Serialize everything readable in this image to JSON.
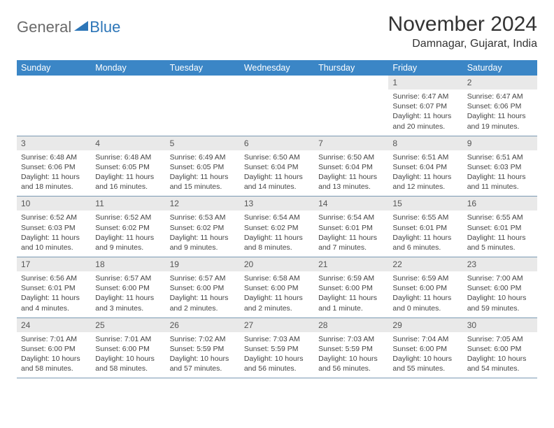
{
  "logo": {
    "general": "General",
    "blue": "Blue"
  },
  "title": "November 2024",
  "location": "Damnagar, Gujarat, India",
  "columns": [
    "Sunday",
    "Monday",
    "Tuesday",
    "Wednesday",
    "Thursday",
    "Friday",
    "Saturday"
  ],
  "colors": {
    "header_bg": "#3b86c6",
    "header_fg": "#ffffff",
    "daynum_bg": "#e9e9e9",
    "row_border": "#7a99b3",
    "logo_blue": "#2d76b8",
    "logo_gray": "#6a6a6a",
    "text": "#444444"
  },
  "weeks": [
    [
      {
        "n": "",
        "sunrise": "",
        "sunset": "",
        "daylight": ""
      },
      {
        "n": "",
        "sunrise": "",
        "sunset": "",
        "daylight": ""
      },
      {
        "n": "",
        "sunrise": "",
        "sunset": "",
        "daylight": ""
      },
      {
        "n": "",
        "sunrise": "",
        "sunset": "",
        "daylight": ""
      },
      {
        "n": "",
        "sunrise": "",
        "sunset": "",
        "daylight": ""
      },
      {
        "n": "1",
        "sunrise": "Sunrise: 6:47 AM",
        "sunset": "Sunset: 6:07 PM",
        "daylight": "Daylight: 11 hours and 20 minutes."
      },
      {
        "n": "2",
        "sunrise": "Sunrise: 6:47 AM",
        "sunset": "Sunset: 6:06 PM",
        "daylight": "Daylight: 11 hours and 19 minutes."
      }
    ],
    [
      {
        "n": "3",
        "sunrise": "Sunrise: 6:48 AM",
        "sunset": "Sunset: 6:06 PM",
        "daylight": "Daylight: 11 hours and 18 minutes."
      },
      {
        "n": "4",
        "sunrise": "Sunrise: 6:48 AM",
        "sunset": "Sunset: 6:05 PM",
        "daylight": "Daylight: 11 hours and 16 minutes."
      },
      {
        "n": "5",
        "sunrise": "Sunrise: 6:49 AM",
        "sunset": "Sunset: 6:05 PM",
        "daylight": "Daylight: 11 hours and 15 minutes."
      },
      {
        "n": "6",
        "sunrise": "Sunrise: 6:50 AM",
        "sunset": "Sunset: 6:04 PM",
        "daylight": "Daylight: 11 hours and 14 minutes."
      },
      {
        "n": "7",
        "sunrise": "Sunrise: 6:50 AM",
        "sunset": "Sunset: 6:04 PM",
        "daylight": "Daylight: 11 hours and 13 minutes."
      },
      {
        "n": "8",
        "sunrise": "Sunrise: 6:51 AM",
        "sunset": "Sunset: 6:04 PM",
        "daylight": "Daylight: 11 hours and 12 minutes."
      },
      {
        "n": "9",
        "sunrise": "Sunrise: 6:51 AM",
        "sunset": "Sunset: 6:03 PM",
        "daylight": "Daylight: 11 hours and 11 minutes."
      }
    ],
    [
      {
        "n": "10",
        "sunrise": "Sunrise: 6:52 AM",
        "sunset": "Sunset: 6:03 PM",
        "daylight": "Daylight: 11 hours and 10 minutes."
      },
      {
        "n": "11",
        "sunrise": "Sunrise: 6:52 AM",
        "sunset": "Sunset: 6:02 PM",
        "daylight": "Daylight: 11 hours and 9 minutes."
      },
      {
        "n": "12",
        "sunrise": "Sunrise: 6:53 AM",
        "sunset": "Sunset: 6:02 PM",
        "daylight": "Daylight: 11 hours and 9 minutes."
      },
      {
        "n": "13",
        "sunrise": "Sunrise: 6:54 AM",
        "sunset": "Sunset: 6:02 PM",
        "daylight": "Daylight: 11 hours and 8 minutes."
      },
      {
        "n": "14",
        "sunrise": "Sunrise: 6:54 AM",
        "sunset": "Sunset: 6:01 PM",
        "daylight": "Daylight: 11 hours and 7 minutes."
      },
      {
        "n": "15",
        "sunrise": "Sunrise: 6:55 AM",
        "sunset": "Sunset: 6:01 PM",
        "daylight": "Daylight: 11 hours and 6 minutes."
      },
      {
        "n": "16",
        "sunrise": "Sunrise: 6:55 AM",
        "sunset": "Sunset: 6:01 PM",
        "daylight": "Daylight: 11 hours and 5 minutes."
      }
    ],
    [
      {
        "n": "17",
        "sunrise": "Sunrise: 6:56 AM",
        "sunset": "Sunset: 6:01 PM",
        "daylight": "Daylight: 11 hours and 4 minutes."
      },
      {
        "n": "18",
        "sunrise": "Sunrise: 6:57 AM",
        "sunset": "Sunset: 6:00 PM",
        "daylight": "Daylight: 11 hours and 3 minutes."
      },
      {
        "n": "19",
        "sunrise": "Sunrise: 6:57 AM",
        "sunset": "Sunset: 6:00 PM",
        "daylight": "Daylight: 11 hours and 2 minutes."
      },
      {
        "n": "20",
        "sunrise": "Sunrise: 6:58 AM",
        "sunset": "Sunset: 6:00 PM",
        "daylight": "Daylight: 11 hours and 2 minutes."
      },
      {
        "n": "21",
        "sunrise": "Sunrise: 6:59 AM",
        "sunset": "Sunset: 6:00 PM",
        "daylight": "Daylight: 11 hours and 1 minute."
      },
      {
        "n": "22",
        "sunrise": "Sunrise: 6:59 AM",
        "sunset": "Sunset: 6:00 PM",
        "daylight": "Daylight: 11 hours and 0 minutes."
      },
      {
        "n": "23",
        "sunrise": "Sunrise: 7:00 AM",
        "sunset": "Sunset: 6:00 PM",
        "daylight": "Daylight: 10 hours and 59 minutes."
      }
    ],
    [
      {
        "n": "24",
        "sunrise": "Sunrise: 7:01 AM",
        "sunset": "Sunset: 6:00 PM",
        "daylight": "Daylight: 10 hours and 58 minutes."
      },
      {
        "n": "25",
        "sunrise": "Sunrise: 7:01 AM",
        "sunset": "Sunset: 6:00 PM",
        "daylight": "Daylight: 10 hours and 58 minutes."
      },
      {
        "n": "26",
        "sunrise": "Sunrise: 7:02 AM",
        "sunset": "Sunset: 5:59 PM",
        "daylight": "Daylight: 10 hours and 57 minutes."
      },
      {
        "n": "27",
        "sunrise": "Sunrise: 7:03 AM",
        "sunset": "Sunset: 5:59 PM",
        "daylight": "Daylight: 10 hours and 56 minutes."
      },
      {
        "n": "28",
        "sunrise": "Sunrise: 7:03 AM",
        "sunset": "Sunset: 5:59 PM",
        "daylight": "Daylight: 10 hours and 56 minutes."
      },
      {
        "n": "29",
        "sunrise": "Sunrise: 7:04 AM",
        "sunset": "Sunset: 6:00 PM",
        "daylight": "Daylight: 10 hours and 55 minutes."
      },
      {
        "n": "30",
        "sunrise": "Sunrise: 7:05 AM",
        "sunset": "Sunset: 6:00 PM",
        "daylight": "Daylight: 10 hours and 54 minutes."
      }
    ]
  ]
}
